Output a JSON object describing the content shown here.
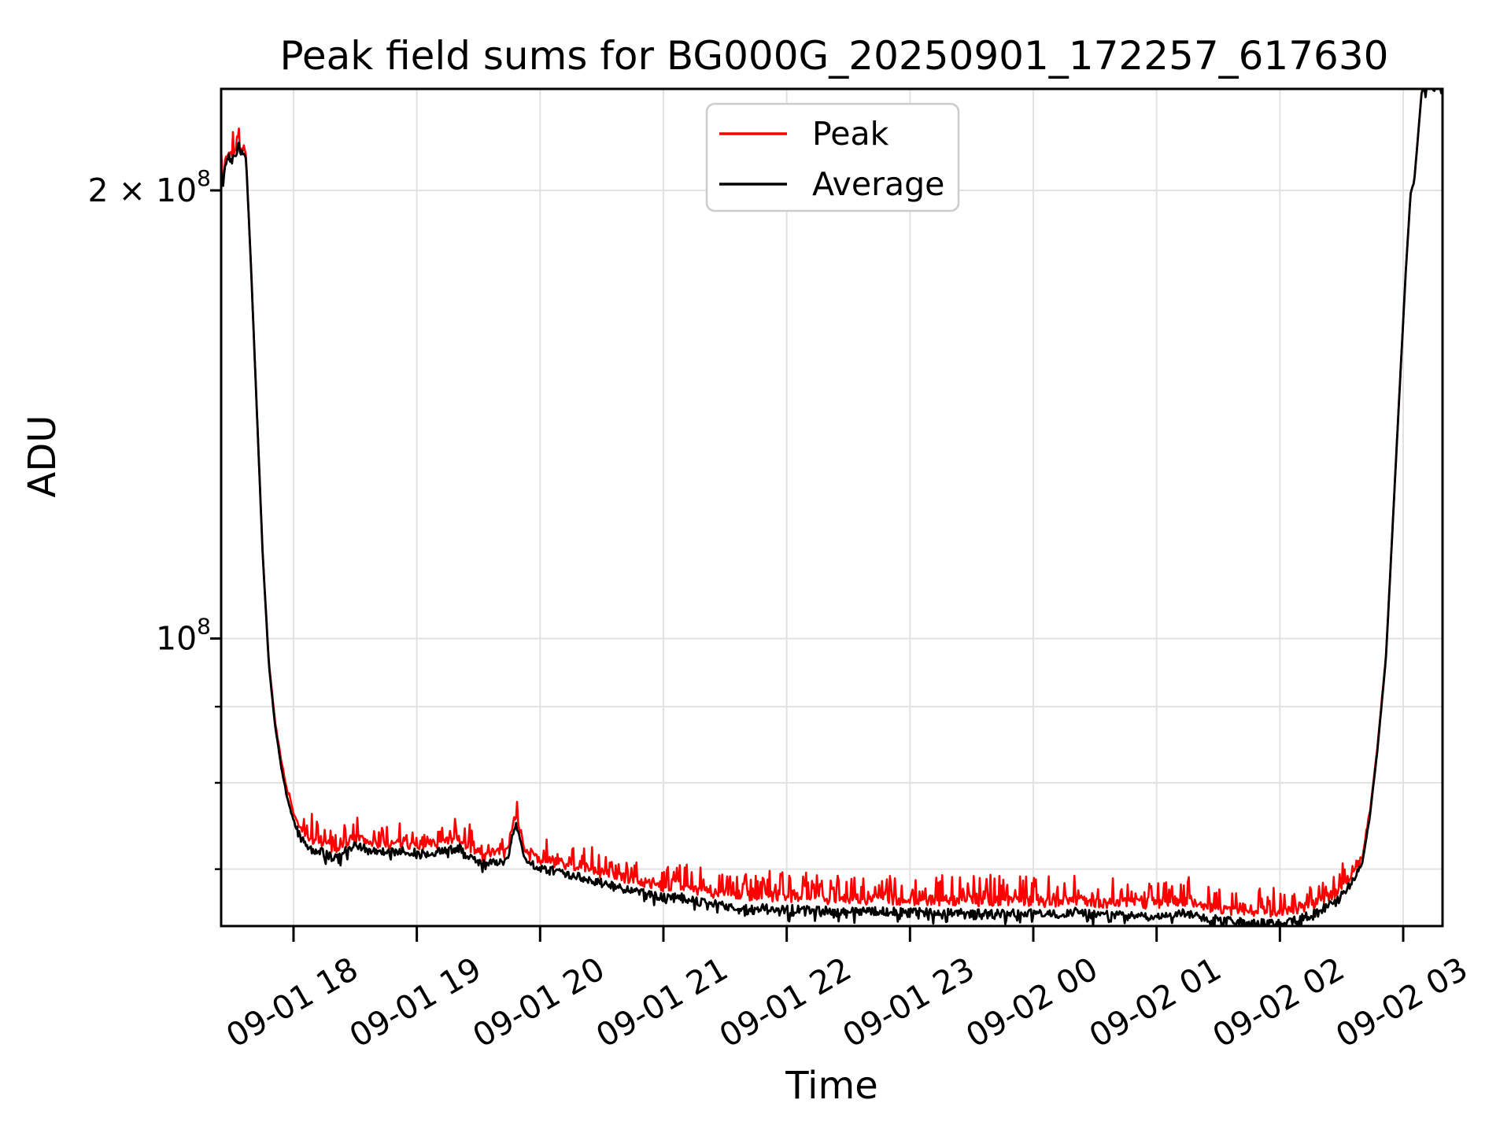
{
  "chart": {
    "title": "Peak field sums for BG000G_20250901_172257_617630",
    "xlabel": "Time",
    "ylabel": "ADU"
  },
  "colors": {
    "peak_line": "#ff0000",
    "average_line": "#000000",
    "grid_line": "#e2e2e2",
    "legend_border": "#cccccc",
    "background": "#ffffff"
  },
  "chart_data": {
    "type": "line",
    "x_axis": {
      "unit": "hours since 2025-09-01 17:00",
      "xlim": [
        0.413,
        10.319
      ],
      "xlim_time": [
        "09-01 17:25",
        "09-02 03:19"
      ],
      "ticks": [
        {
          "h": 1,
          "label": "09-01 18"
        },
        {
          "h": 2,
          "label": "09-01 19"
        },
        {
          "h": 3,
          "label": "09-01 20"
        },
        {
          "h": 4,
          "label": "09-01 21"
        },
        {
          "h": 5,
          "label": "09-01 22"
        },
        {
          "h": 6,
          "label": "09-01 23"
        },
        {
          "h": 7,
          "label": "09-02 00"
        },
        {
          "h": 8,
          "label": "09-02 01"
        },
        {
          "h": 9,
          "label": "09-02 02"
        },
        {
          "h": 10,
          "label": "09-02 03"
        }
      ]
    },
    "y_axis": {
      "scale": "log",
      "ylim": [
        64100000.0,
        234000000.0
      ],
      "ticks": [
        {
          "value": 200000000.0,
          "base": "2 × 10",
          "exp": "8",
          "major": true
        },
        {
          "value": 100000000.0,
          "base": "10",
          "exp": "8",
          "major": true
        },
        {
          "value": 90000000.0,
          "major": false
        },
        {
          "value": 80000000.0,
          "major": false
        },
        {
          "value": 70000000.0,
          "major": false
        }
      ]
    },
    "grid": "both",
    "legend_position": "upper center",
    "series": [
      {
        "name": "Peak",
        "color": "#ff0000",
        "noise": {
          "sigma": 0.0035,
          "spike_amp": 0.016,
          "spike_prob": 0.3,
          "spike_dir": 1,
          "seed": 7
        },
        "points": [
          [
            0.413,
            207000000.0
          ],
          [
            0.43,
            204000000.0
          ],
          [
            0.45,
            210000000.0
          ],
          [
            0.48,
            213000000.0
          ],
          [
            0.51,
            211000000.0
          ],
          [
            0.535,
            213000000.0
          ],
          [
            0.55,
            218000000.0
          ],
          [
            0.565,
            213000000.0
          ],
          [
            0.6,
            213000000.0
          ],
          [
            0.615,
            211000000.0
          ],
          [
            0.65,
            182000000.0
          ],
          [
            0.7,
            144000000.0
          ],
          [
            0.75,
            114000000.0
          ],
          [
            0.8,
            96500000.0
          ],
          [
            0.85,
            88000000.0
          ],
          [
            0.9,
            82800000.0
          ],
          [
            0.95,
            78800000.0
          ],
          [
            1.0,
            76400000.0
          ],
          [
            1.06,
            74400000.0
          ],
          [
            1.13,
            73100000.0
          ],
          [
            1.22,
            72900000.0
          ],
          [
            1.32,
            72100000.0
          ],
          [
            1.4,
            72700000.0
          ],
          [
            1.5,
            73500000.0
          ],
          [
            1.6,
            73100000.0
          ],
          [
            1.75,
            72700000.0
          ],
          [
            1.9,
            72900000.0
          ],
          [
            2.05,
            72600000.0
          ],
          [
            2.2,
            72900000.0
          ],
          [
            2.35,
            73200000.0
          ],
          [
            2.48,
            71900000.0
          ],
          [
            2.56,
            71200000.0
          ],
          [
            2.64,
            71800000.0
          ],
          [
            2.7,
            71600000.0
          ],
          [
            2.74,
            72200000.0
          ],
          [
            2.78,
            75000000.0
          ],
          [
            2.8,
            76000000.0
          ],
          [
            2.83,
            74700000.0
          ],
          [
            2.87,
            72100000.0
          ],
          [
            2.92,
            71400000.0
          ],
          [
            3.05,
            71000000.0
          ],
          [
            3.25,
            70400000.0
          ],
          [
            3.45,
            69700000.0
          ],
          [
            3.65,
            69100000.0
          ],
          [
            3.85,
            68500000.0
          ],
          [
            4.0,
            68100000.0
          ],
          [
            4.1,
            68300000.0
          ],
          [
            4.3,
            67600000.0
          ],
          [
            4.55,
            67300000.0
          ],
          [
            4.8,
            67100000.0
          ],
          [
            5.1,
            67000000.0
          ],
          [
            5.4,
            66800000.0
          ],
          [
            5.7,
            66800000.0
          ],
          [
            6.0,
            66700000.0
          ],
          [
            6.3,
            66700000.0
          ],
          [
            6.6,
            66600000.0
          ],
          [
            6.9,
            66600000.0
          ],
          [
            7.2,
            66500000.0
          ],
          [
            7.35,
            66800000.0
          ],
          [
            7.5,
            66400000.0
          ],
          [
            7.8,
            66400000.0
          ],
          [
            8.05,
            66300000.0
          ],
          [
            8.2,
            66600000.0
          ],
          [
            8.4,
            66100000.0
          ],
          [
            8.6,
            65700000.0
          ],
          [
            8.85,
            65500000.0
          ],
          [
            9.05,
            65600000.0
          ],
          [
            9.25,
            66200000.0
          ],
          [
            9.45,
            67400000.0
          ],
          [
            9.58,
            69200000.0
          ],
          [
            9.67,
            71400000.0
          ],
          [
            9.73,
            76400000.0
          ],
          [
            9.79,
            84400000.0
          ],
          [
            9.86,
            97300000.0
          ],
          [
            9.95,
            136000000.0
          ],
          [
            10.02,
            176000000.0
          ],
          [
            10.06,
            199000000.0
          ],
          [
            10.09,
            203000000.0
          ],
          [
            10.15,
            233000000.0
          ],
          [
            10.2,
            236000000.0
          ],
          [
            10.319,
            236000000.0
          ]
        ]
      },
      {
        "name": "Average",
        "color": "#000000",
        "noise": {
          "sigma": 0.0028,
          "spike_amp": 0.006,
          "spike_prob": 0.2,
          "spike_dir": -1,
          "seed": 13
        },
        "points": [
          [
            0.413,
            206000000.0
          ],
          [
            0.43,
            203000000.0
          ],
          [
            0.45,
            209000000.0
          ],
          [
            0.48,
            212000000.0
          ],
          [
            0.51,
            210000000.0
          ],
          [
            0.535,
            212000000.0
          ],
          [
            0.55,
            217000000.0
          ],
          [
            0.565,
            212000000.0
          ],
          [
            0.6,
            212000000.0
          ],
          [
            0.615,
            210000000.0
          ],
          [
            0.65,
            182000000.0
          ],
          [
            0.7,
            144000000.0
          ],
          [
            0.75,
            114000000.0
          ],
          [
            0.8,
            96000000.0
          ],
          [
            0.85,
            87500000.0
          ],
          [
            0.9,
            82000000.0
          ],
          [
            0.95,
            78000000.0
          ],
          [
            1.0,
            75500000.0
          ],
          [
            1.06,
            73500000.0
          ],
          [
            1.13,
            72200000.0
          ],
          [
            1.22,
            72000000.0
          ],
          [
            1.32,
            71200000.0
          ],
          [
            1.4,
            71800000.0
          ],
          [
            1.5,
            72600000.0
          ],
          [
            1.6,
            72200000.0
          ],
          [
            1.75,
            71800000.0
          ],
          [
            1.9,
            72000000.0
          ],
          [
            2.05,
            71700000.0
          ],
          [
            2.2,
            72000000.0
          ],
          [
            2.35,
            72300000.0
          ],
          [
            2.48,
            71000000.0
          ],
          [
            2.56,
            70400000.0
          ],
          [
            2.64,
            70900000.0
          ],
          [
            2.7,
            70700000.0
          ],
          [
            2.74,
            71200000.0
          ],
          [
            2.78,
            74200000.0
          ],
          [
            2.8,
            75200000.0
          ],
          [
            2.83,
            73800000.0
          ],
          [
            2.87,
            71200000.0
          ],
          [
            2.92,
            70500000.0
          ],
          [
            3.05,
            70000000.0
          ],
          [
            3.25,
            69400000.0
          ],
          [
            3.45,
            68700000.0
          ],
          [
            3.65,
            68000000.0
          ],
          [
            3.85,
            67400000.0
          ],
          [
            4.0,
            67000000.0
          ],
          [
            4.1,
            67200000.0
          ],
          [
            4.3,
            66500000.0
          ],
          [
            4.55,
            66100000.0
          ],
          [
            4.8,
            65900000.0
          ],
          [
            5.1,
            65800000.0
          ],
          [
            5.4,
            65600000.0
          ],
          [
            5.7,
            65600000.0
          ],
          [
            6.0,
            65500000.0
          ],
          [
            6.3,
            65500000.0
          ],
          [
            6.6,
            65400000.0
          ],
          [
            6.9,
            65400000.0
          ],
          [
            7.2,
            65300000.0
          ],
          [
            7.35,
            65600000.0
          ],
          [
            7.5,
            65200000.0
          ],
          [
            7.8,
            65200000.0
          ],
          [
            8.05,
            65100000.0
          ],
          [
            8.2,
            65400000.0
          ],
          [
            8.4,
            64900000.0
          ],
          [
            8.6,
            64600000.0
          ],
          [
            8.85,
            64400000.0
          ],
          [
            9.05,
            64500000.0
          ],
          [
            9.25,
            65200000.0
          ],
          [
            9.45,
            66500000.0
          ],
          [
            9.58,
            68500000.0
          ],
          [
            9.67,
            70800000.0
          ],
          [
            9.73,
            76000000.0
          ],
          [
            9.79,
            84000000.0
          ],
          [
            9.86,
            97000000.0
          ],
          [
            9.95,
            136000000.0
          ],
          [
            10.02,
            176000000.0
          ],
          [
            10.06,
            199000000.0
          ],
          [
            10.09,
            203000000.0
          ],
          [
            10.15,
            233000000.0
          ],
          [
            10.2,
            236000000.0
          ],
          [
            10.319,
            236000000.0
          ]
        ]
      }
    ]
  }
}
